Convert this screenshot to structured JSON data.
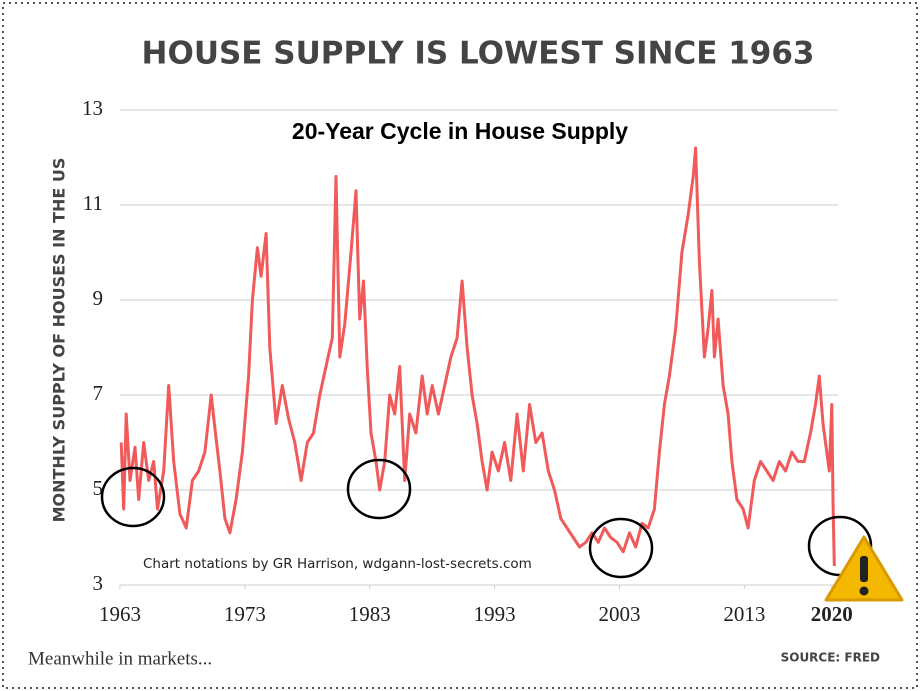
{
  "chart_data": {
    "type": "line",
    "title": "HOUSE SUPPLY IS LOWEST SINCE 1963",
    "subtitle": "20-Year Cycle in House Supply",
    "y_label": "MONTHLY SUPPLY OF HOUSES IN THE US",
    "annotation": "Chart notations by GR Harrison, wdgann-lost-secrets.com",
    "brand": "Meanwhile in markets...",
    "source": "SOURCE:  FRED",
    "color": "#f05a5a",
    "grid": true,
    "xlim": [
      1963,
      2020.5
    ],
    "ylim": [
      3,
      13
    ],
    "xticks": [
      1963,
      1973,
      1983,
      1993,
      2003,
      2013,
      2020
    ],
    "yticks": [
      3,
      5,
      7,
      9,
      11,
      13
    ],
    "x": [
      1963.1,
      1963.3,
      1963.5,
      1963.8,
      1964.2,
      1964.5,
      1964.9,
      1965.3,
      1965.7,
      1966.0,
      1966.5,
      1966.9,
      1967.3,
      1967.8,
      1968.3,
      1968.8,
      1969.3,
      1969.8,
      1970.3,
      1970.6,
      1971.0,
      1971.4,
      1971.8,
      1972.3,
      1972.8,
      1973.3,
      1973.6,
      1974.0,
      1974.3,
      1974.7,
      1975.0,
      1975.5,
      1976.0,
      1976.5,
      1977.0,
      1977.5,
      1978.0,
      1978.5,
      1979.0,
      1979.5,
      1980.0,
      1980.3,
      1980.6,
      1981.0,
      1981.5,
      1981.9,
      1982.2,
      1982.5,
      1982.8,
      1983.1,
      1983.5,
      1983.8,
      1984.2,
      1984.6,
      1985.0,
      1985.4,
      1985.8,
      1986.2,
      1986.7,
      1987.2,
      1987.6,
      1988.0,
      1988.5,
      1989.0,
      1989.5,
      1990.0,
      1990.4,
      1990.8,
      1991.2,
      1991.6,
      1992.0,
      1992.4,
      1992.8,
      1993.3,
      1993.8,
      1994.3,
      1994.8,
      1995.3,
      1995.8,
      1996.3,
      1996.8,
      1997.3,
      1997.8,
      1998.3,
      1998.8,
      1999.3,
      1999.8,
      2000.3,
      2000.8,
      2001.3,
      2001.8,
      2002.3,
      2002.8,
      2003.3,
      2003.8,
      2004.3,
      2004.8,
      2005.3,
      2005.8,
      2006.2,
      2006.6,
      2007.0,
      2007.5,
      2008.0,
      2008.5,
      2008.9,
      2009.1,
      2009.4,
      2009.8,
      2010.1,
      2010.4,
      2010.6,
      2010.9,
      2011.3,
      2011.7,
      2012.0,
      2012.4,
      2012.9,
      2013.3,
      2013.8,
      2014.3,
      2014.8,
      2015.3,
      2015.8,
      2016.3,
      2016.8,
      2017.3,
      2017.8,
      2018.3,
      2018.7,
      2019.0,
      2019.3,
      2019.8,
      2020.0,
      2020.1,
      2020.2
    ],
    "values": [
      6.0,
      4.6,
      6.6,
      5.2,
      5.9,
      4.8,
      6.0,
      5.2,
      5.6,
      4.6,
      5.4,
      7.2,
      5.6,
      4.5,
      4.2,
      5.2,
      5.4,
      5.8,
      7.0,
      6.3,
      5.4,
      4.4,
      4.1,
      4.8,
      5.8,
      7.4,
      9.0,
      10.1,
      9.5,
      10.4,
      8.0,
      6.4,
      7.2,
      6.5,
      6.0,
      5.2,
      6.0,
      6.2,
      7.0,
      7.6,
      8.2,
      11.6,
      7.8,
      8.5,
      10.0,
      11.3,
      8.6,
      9.4,
      7.6,
      6.2,
      5.6,
      5.0,
      5.6,
      7.0,
      6.6,
      7.6,
      5.2,
      6.6,
      6.2,
      7.4,
      6.6,
      7.2,
      6.6,
      7.2,
      7.8,
      8.2,
      9.4,
      8.0,
      7.0,
      6.4,
      5.6,
      5.0,
      5.8,
      5.4,
      6.0,
      5.2,
      6.6,
      5.4,
      6.8,
      6.0,
      6.2,
      5.4,
      5.0,
      4.4,
      4.2,
      4.0,
      3.8,
      3.9,
      4.1,
      3.9,
      4.2,
      4.0,
      3.9,
      3.7,
      4.1,
      3.8,
      4.3,
      4.2,
      4.6,
      5.8,
      6.8,
      7.4,
      8.4,
      10.0,
      10.8,
      11.6,
      12.2,
      9.8,
      7.8,
      8.4,
      9.2,
      7.8,
      8.6,
      7.2,
      6.6,
      5.6,
      4.8,
      4.6,
      4.2,
      5.2,
      5.6,
      5.4,
      5.2,
      5.6,
      5.4,
      5.8,
      5.6,
      5.6,
      6.2,
      6.8,
      7.4,
      6.4,
      5.4,
      6.8,
      4.8,
      3.4
    ]
  }
}
